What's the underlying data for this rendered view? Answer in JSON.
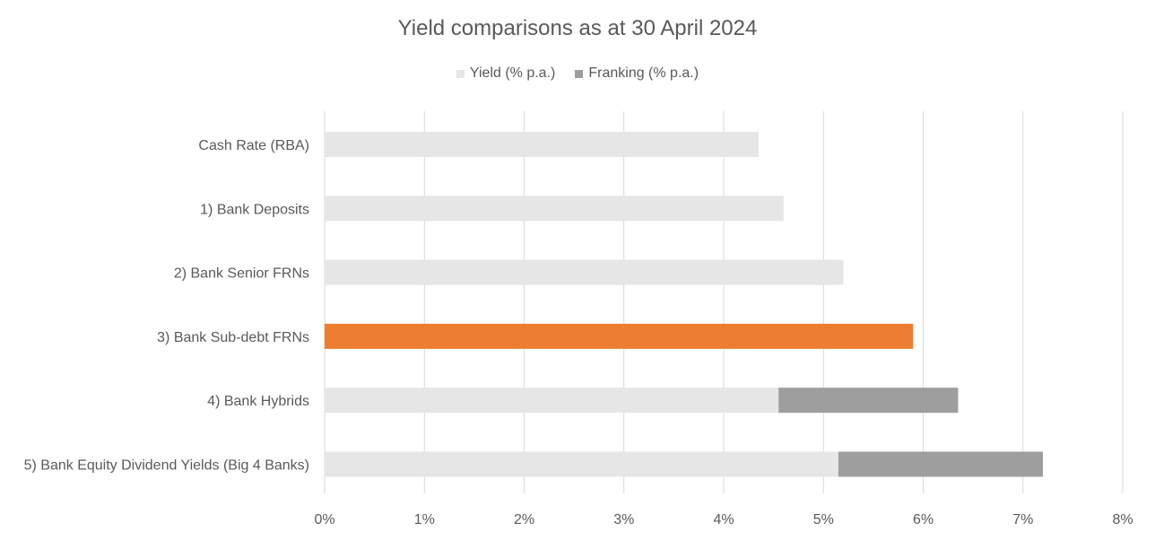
{
  "chart_data": {
    "type": "bar",
    "orientation": "horizontal",
    "stacked": true,
    "title": "Yield comparisons as at 30 April 2024",
    "categories": [
      "Cash Rate (RBA)",
      "1) Bank Deposits",
      "2) Bank Senior FRNs",
      "3) Bank Sub-debt FRNs",
      "4) Bank Hybrids",
      "5) Bank Equity Dividend Yields (Big 4 Banks)"
    ],
    "series": [
      {
        "name": "Yield (% p.a.)",
        "color": "#e6e6e6",
        "values": [
          4.35,
          4.6,
          5.2,
          5.9,
          4.55,
          5.15
        ]
      },
      {
        "name": "Franking (% p.a.)",
        "color": "#9e9e9e",
        "values": [
          0,
          0,
          0,
          0,
          1.8,
          2.05
        ]
      }
    ],
    "highlight": {
      "category_index": 3,
      "color": "#ed7d31"
    },
    "xlim": [
      0,
      8
    ],
    "x_ticks": [
      "0%",
      "1%",
      "2%",
      "3%",
      "4%",
      "5%",
      "6%",
      "7%",
      "8%"
    ],
    "xlabel": "",
    "ylabel": "",
    "grid": "vertical",
    "legend_position": "top"
  }
}
